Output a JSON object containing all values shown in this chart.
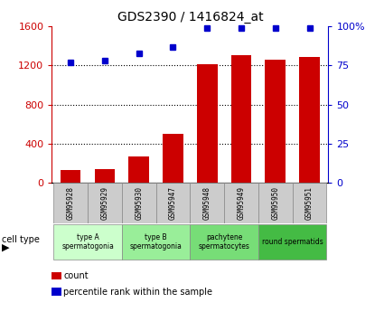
{
  "title": "GDS2390 / 1416824_at",
  "samples": [
    "GSM95928",
    "GSM95929",
    "GSM95930",
    "GSM95947",
    "GSM95948",
    "GSM95949",
    "GSM95950",
    "GSM95951"
  ],
  "counts": [
    130,
    140,
    270,
    500,
    1210,
    1310,
    1260,
    1285
  ],
  "percentile_ranks": [
    77,
    78,
    83,
    87,
    99,
    99,
    99,
    99
  ],
  "bar_color": "#cc0000",
  "dot_color": "#0000cc",
  "left_axis_color": "#cc0000",
  "right_axis_color": "#0000cc",
  "ylim_left": [
    0,
    1600
  ],
  "ylim_right": [
    0,
    100
  ],
  "yticks_left": [
    0,
    400,
    800,
    1200,
    1600
  ],
  "ytick_labels_right": [
    "0",
    "25",
    "50",
    "75",
    "100%"
  ],
  "cell_groups": [
    {
      "label": "type A\nspermatogonia",
      "color": "#ccffcc",
      "start": 0,
      "end": 2
    },
    {
      "label": "type B\nspermatogonia",
      "color": "#99ee99",
      "start": 2,
      "end": 4
    },
    {
      "label": "pachytene\nspermatocytes",
      "color": "#77dd77",
      "start": 4,
      "end": 6
    },
    {
      "label": "round spermatids",
      "color": "#44bb44",
      "start": 6,
      "end": 8
    }
  ],
  "sample_box_color": "#cccccc",
  "legend_count_color": "#cc0000",
  "legend_pct_color": "#0000cc",
  "bg_color": "#ffffff"
}
